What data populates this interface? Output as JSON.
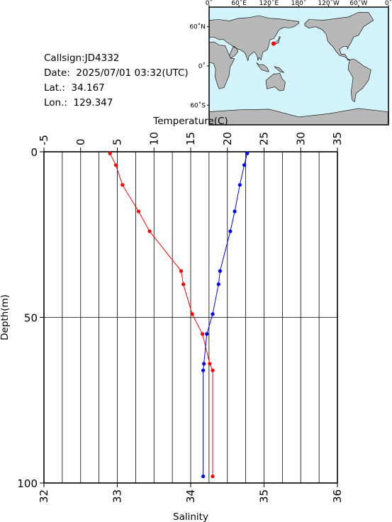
{
  "info": {
    "callsign": "Callsign:JD4332",
    "date": "Date:  2025/07/01 03:32(UTC)",
    "lat": "Lat.:  34.167",
    "lon": "Lon.:  129.347"
  },
  "map": {
    "lon_labels": [
      "0˚",
      "60˚E",
      "120˚E",
      "180˚",
      "120˚W",
      "60˚W",
      "0˚"
    ],
    "lat_labels": [
      "60˚N",
      "0˚",
      "60˚S"
    ],
    "ocean_color": "#d4f4fc",
    "land_color": "#b8b8b8",
    "marker_color": "#ff0000",
    "marker_lon": 129.347,
    "marker_lat": 34.167
  },
  "chart_data": {
    "type": "line",
    "top_axis_label": "Temperature(C)",
    "bottom_axis_label": "Salinity",
    "ylabel": "Depth(m)",
    "temperature_ticks": [
      "-5",
      "0",
      "5",
      "10",
      "15",
      "20",
      "25",
      "30",
      "35"
    ],
    "salinity_ticks": [
      "32",
      "33",
      "34",
      "35",
      "36"
    ],
    "depth_ticks": [
      "0",
      "50",
      "100"
    ],
    "temperature_range": [
      -5,
      35
    ],
    "salinity_range": [
      32,
      36
    ],
    "depth_range": [
      0,
      100
    ],
    "grid": true,
    "series": [
      {
        "quantity": "temperature",
        "color": "#ff0000",
        "points": [
          {
            "value": 4.0,
            "depth": 0.5
          },
          {
            "value": 4.8,
            "depth": 4
          },
          {
            "value": 5.7,
            "depth": 10
          },
          {
            "value": 7.9,
            "depth": 18
          },
          {
            "value": 9.4,
            "depth": 24
          },
          {
            "value": 13.7,
            "depth": 36
          },
          {
            "value": 14.0,
            "depth": 40
          },
          {
            "value": 15.2,
            "depth": 49
          },
          {
            "value": 16.6,
            "depth": 55
          },
          {
            "value": 17.6,
            "depth": 64
          },
          {
            "value": 18.0,
            "depth": 66
          },
          {
            "value": 18.0,
            "depth": 98
          }
        ]
      },
      {
        "quantity": "salinity",
        "color": "#0000ff",
        "points": [
          {
            "value": 34.77,
            "depth": 0.5
          },
          {
            "value": 34.73,
            "depth": 4
          },
          {
            "value": 34.67,
            "depth": 10
          },
          {
            "value": 34.6,
            "depth": 18
          },
          {
            "value": 34.54,
            "depth": 24
          },
          {
            "value": 34.4,
            "depth": 36
          },
          {
            "value": 34.38,
            "depth": 40
          },
          {
            "value": 34.3,
            "depth": 49
          },
          {
            "value": 34.22,
            "depth": 55
          },
          {
            "value": 34.18,
            "depth": 64
          },
          {
            "value": 34.17,
            "depth": 66
          },
          {
            "value": 34.17,
            "depth": 98
          }
        ]
      }
    ]
  }
}
